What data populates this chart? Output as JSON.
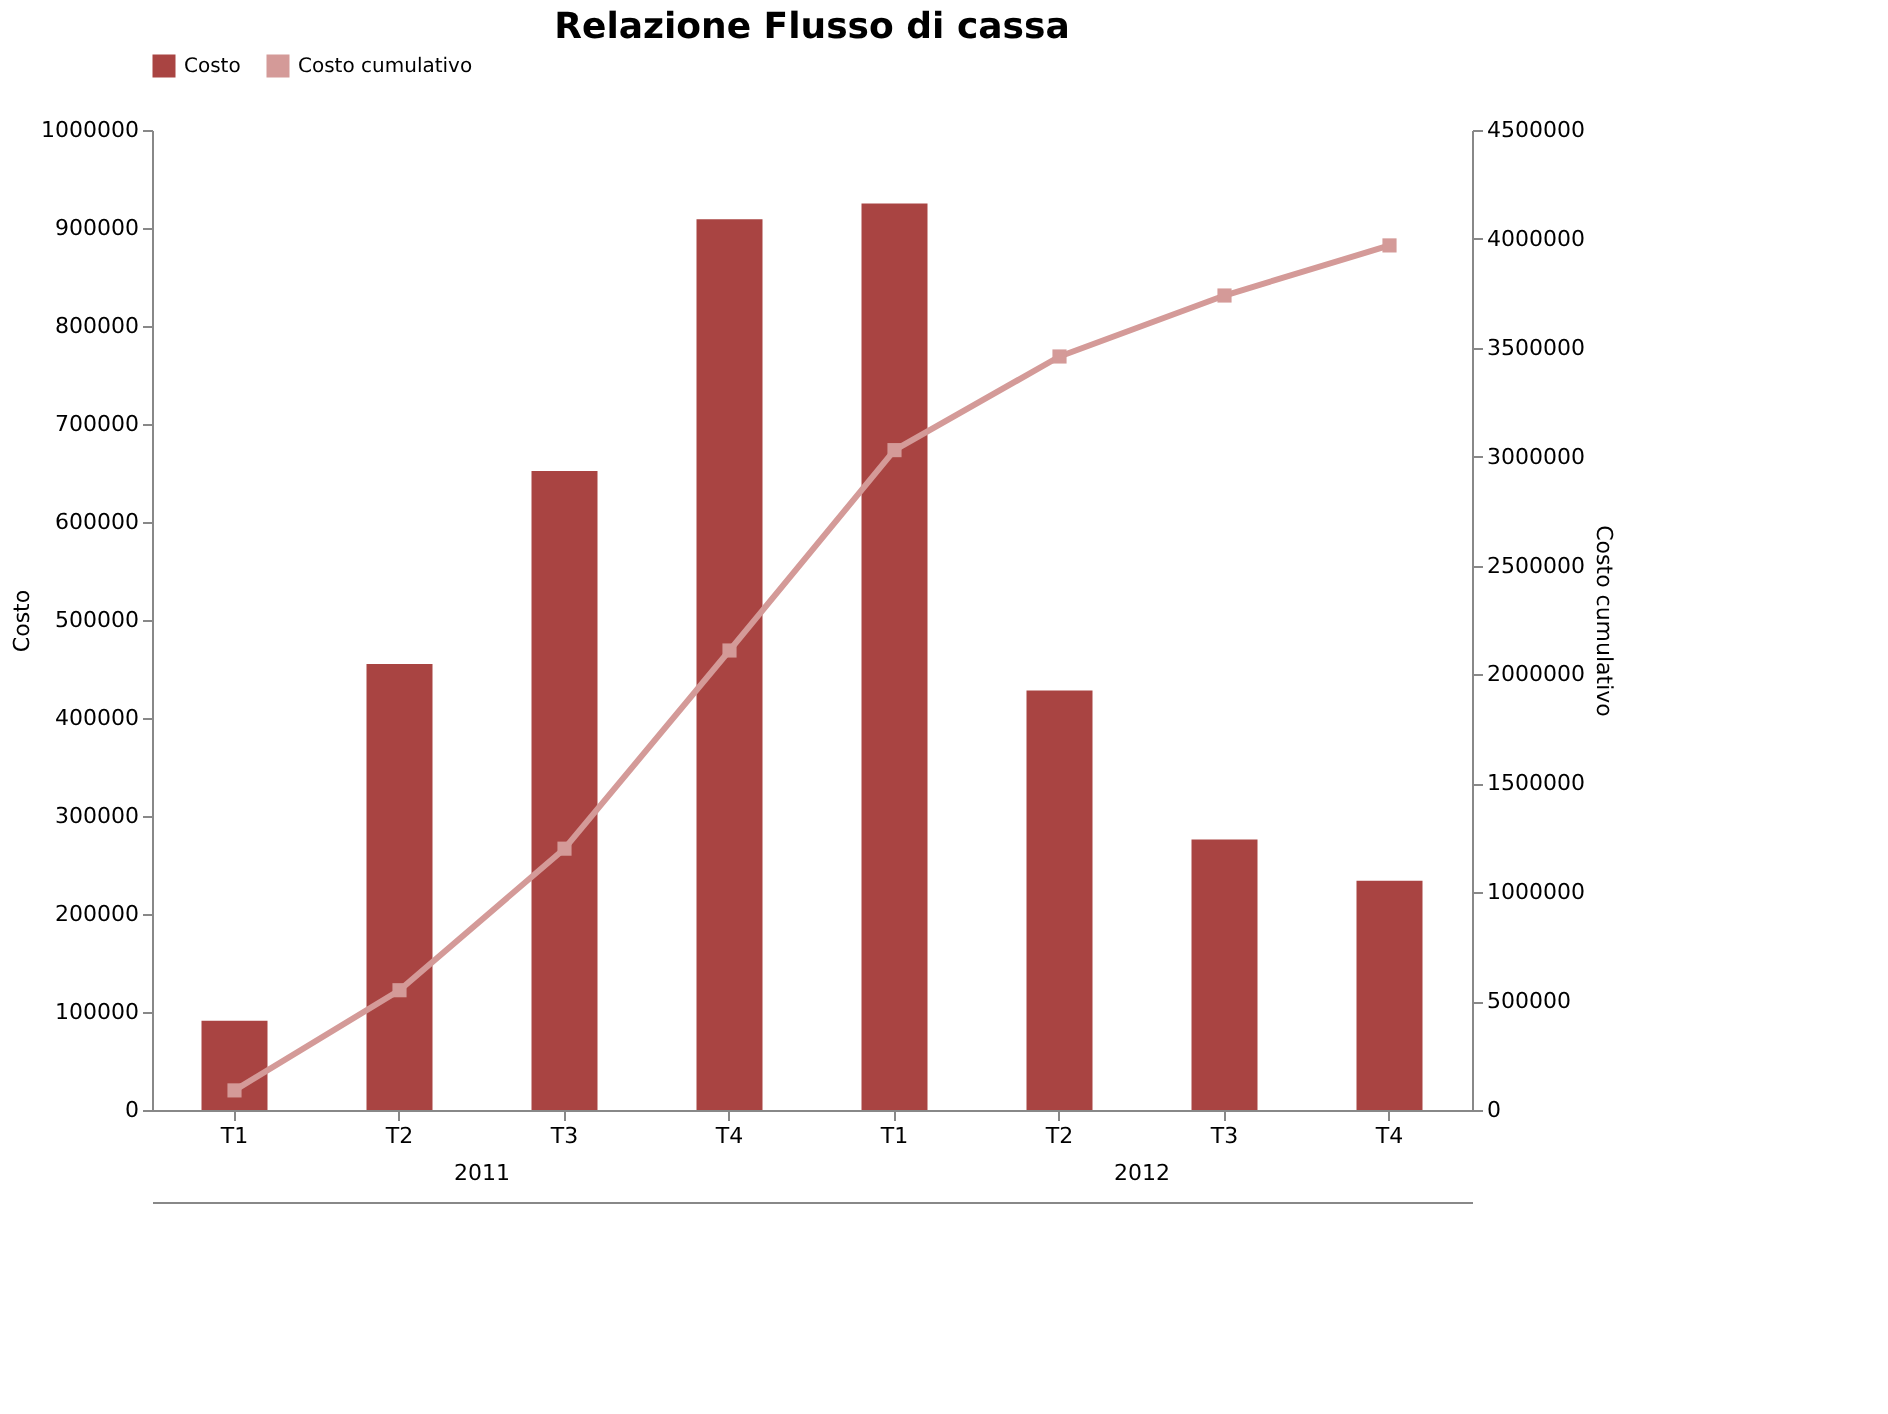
{
  "chart_data": {
    "type": "bar",
    "title": "Relazione Flusso di cassa",
    "categories": [
      "T1",
      "T2",
      "T3",
      "T4",
      "T1",
      "T2",
      "T3",
      "T4"
    ],
    "series": [
      {
        "name": "Costo",
        "color": "#a94442",
        "values": [
          91000,
          455000,
          652000,
          909000,
          925000,
          428000,
          276000,
          234000
        ]
      },
      {
        "name": "Costo cumulativo",
        "type": "line",
        "axis": "y2",
        "color": "#d49a98",
        "marker": "square",
        "values": [
          90000,
          550000,
          1200000,
          2110000,
          3030000,
          3460000,
          3740000,
          3970000
        ]
      }
    ],
    "ylabel": "Costo",
    "y2label": "Costo cumulativo",
    "ylim": [
      0,
      1000000
    ],
    "yticks": [
      0,
      100000,
      200000,
      300000,
      400000,
      500000,
      600000,
      700000,
      800000,
      900000,
      1000000
    ],
    "y2lim": [
      0,
      4500000
    ],
    "y2ticks": [
      0,
      500000,
      1000000,
      1500000,
      2000000,
      2500000,
      3000000,
      3500000,
      4000000,
      4500000
    ],
    "annotations": [
      "2011",
      "2012"
    ],
    "legend": "top",
    "grid": false
  }
}
